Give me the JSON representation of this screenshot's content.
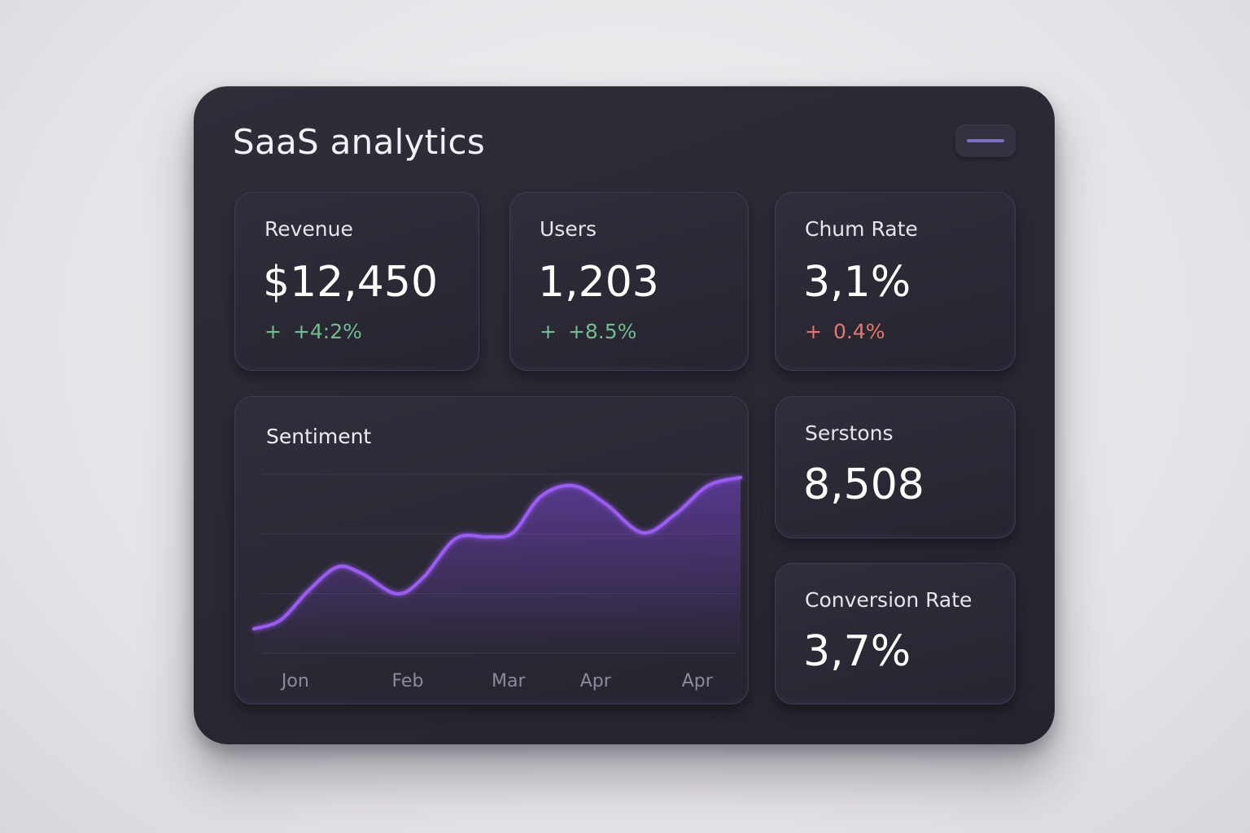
{
  "header": {
    "title": "SaaS analytics"
  },
  "cards": [
    {
      "label": "Revenue",
      "value": "$12,450",
      "change_icon": "+",
      "change": "+4:2%",
      "change_color": "#6fbf8e"
    },
    {
      "label": "Users",
      "value": "1,203",
      "change_icon": "+",
      "change": "+8.5%",
      "change_color": "#6fbf8e"
    },
    {
      "label": "Chum Rate",
      "value": "3,1%",
      "change_icon": "+",
      "change": "0.4%",
      "change_color": "#e8776a"
    },
    {
      "label": "Serstons",
      "value": "8,508"
    },
    {
      "label": "Conversion Rate",
      "value": "3,7%"
    }
  ],
  "chart_data": {
    "type": "line",
    "title": "Sentiment",
    "x": [
      0,
      5.5,
      11.4,
      17.2,
      22.2,
      29.4,
      34.8,
      41.5,
      48.2,
      53.2,
      59.0,
      65.7,
      72.4,
      79.9,
      86.6,
      93.3,
      100
    ],
    "values": [
      13.6,
      18.6,
      35.5,
      48.2,
      44.5,
      33.2,
      42.3,
      64.1,
      65,
      67.3,
      87.7,
      93.6,
      83.2,
      67.3,
      77.7,
      93.6,
      98.2
    ],
    "xlim": [
      0,
      100
    ],
    "ylim": [
      0,
      100
    ],
    "xticks": [
      {
        "value": 8.5,
        "label": "Jon"
      },
      {
        "value": 31.6,
        "label": "Feb"
      },
      {
        "value": 52.3,
        "label": "Mar"
      },
      {
        "value": 70.2,
        "label": "Apr"
      },
      {
        "value": 91.1,
        "label": "Apr"
      }
    ],
    "color": "#9b5cf6"
  }
}
